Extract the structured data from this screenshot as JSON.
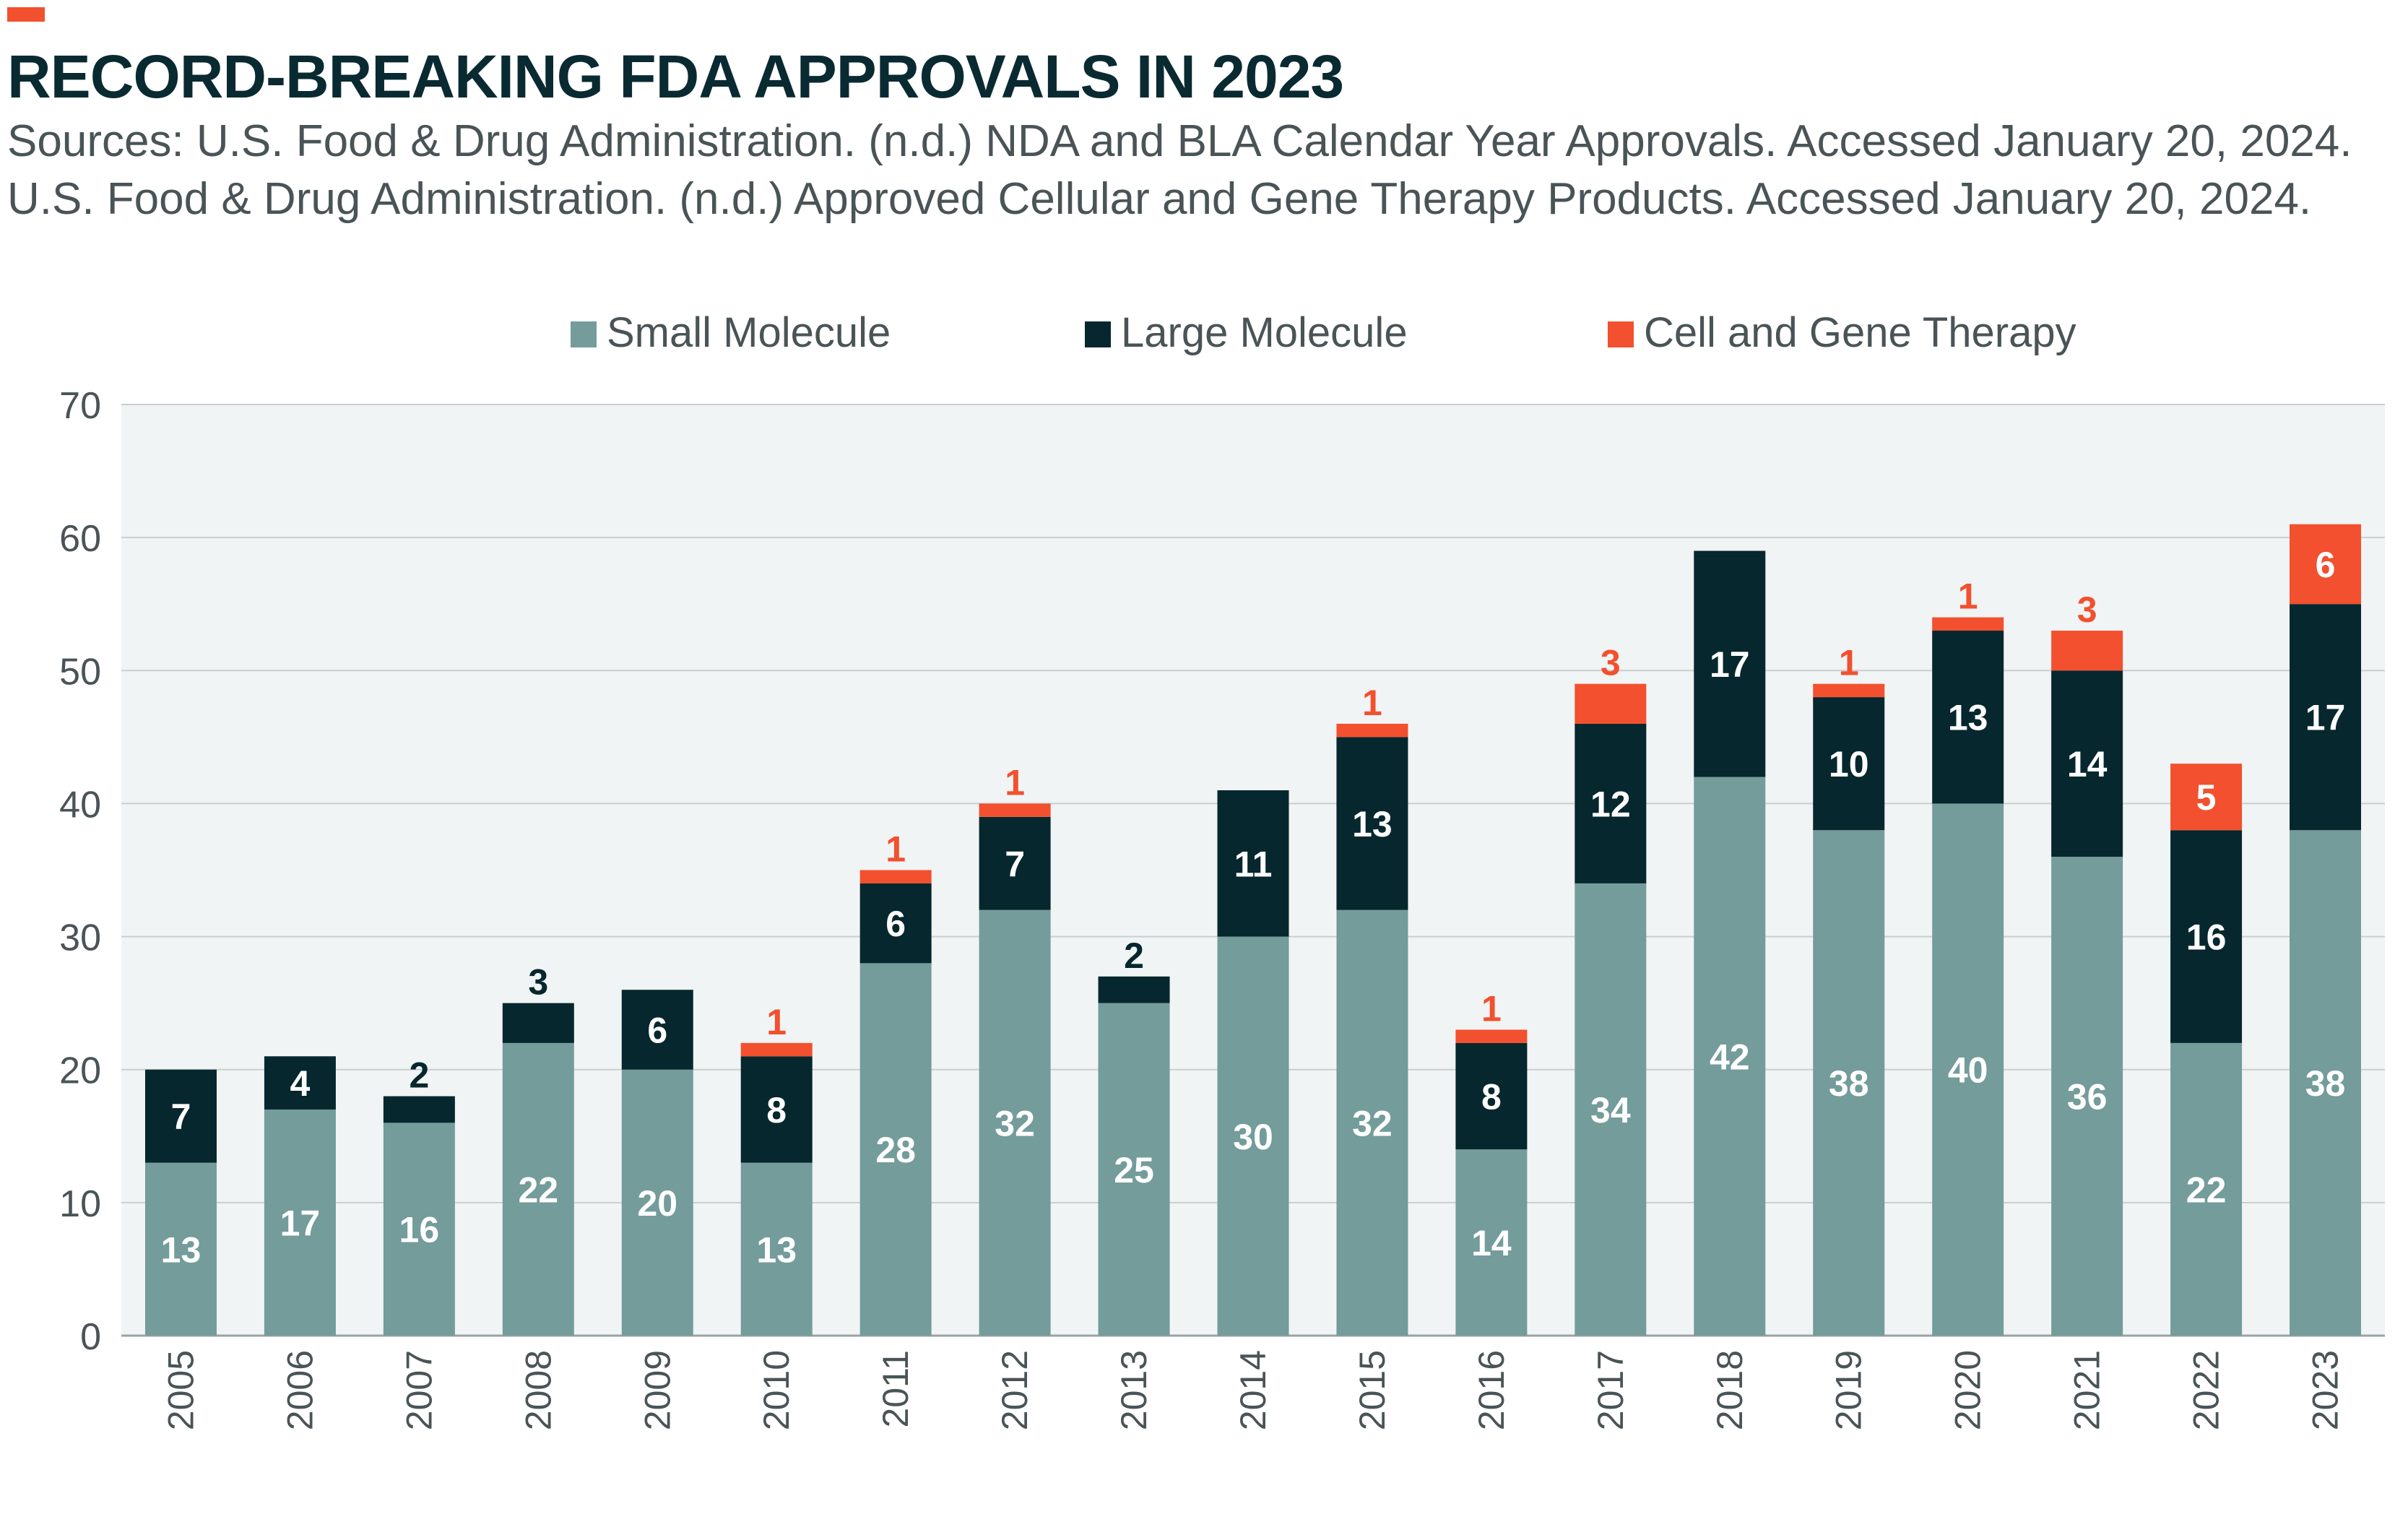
{
  "header": {
    "title": "RECORD-BREAKING FDA APPROVALS IN 2023",
    "source_line1": "Sources: U.S. Food & Drug Administration. (n.d.) NDA and BLA Calendar Year Approvals. Accessed January 20, 2024.",
    "source_line2": "U.S. Food & Drug Administration. (n.d.) Approved Cellular and Gene Therapy Products. Accessed January 20, 2024."
  },
  "colors": {
    "small": "#739c9b",
    "large": "#06272d",
    "cell": "#f2502e",
    "plot_bg": "#f1f4f4",
    "grid": "#c9cfd1",
    "accent": "#f2502e"
  },
  "chart_data": {
    "type": "bar",
    "stacked": true,
    "categories": [
      "2005",
      "2006",
      "2007",
      "2008",
      "2009",
      "2010",
      "2011",
      "2012",
      "2013",
      "2014",
      "2015",
      "2016",
      "2017",
      "2018",
      "2019",
      "2020",
      "2021",
      "2022",
      "2023"
    ],
    "series": [
      {
        "name": "Small Molecule",
        "values": [
          13,
          17,
          16,
          22,
          20,
          13,
          28,
          32,
          25,
          30,
          32,
          14,
          34,
          42,
          38,
          40,
          36,
          22,
          38
        ]
      },
      {
        "name": "Large Molecule",
        "values": [
          7,
          4,
          2,
          3,
          6,
          8,
          6,
          7,
          2,
          11,
          13,
          8,
          12,
          17,
          10,
          13,
          14,
          16,
          17
        ]
      },
      {
        "name": "Cell and Gene Therapy",
        "values": [
          0,
          0,
          0,
          0,
          0,
          1,
          1,
          1,
          0,
          0,
          1,
          1,
          3,
          0,
          1,
          1,
          3,
          5,
          6
        ]
      }
    ],
    "ylim": [
      0,
      70
    ],
    "yticks": [
      0,
      10,
      20,
      30,
      40,
      50,
      60,
      70
    ],
    "legend_position": "top-center",
    "grid": true
  }
}
